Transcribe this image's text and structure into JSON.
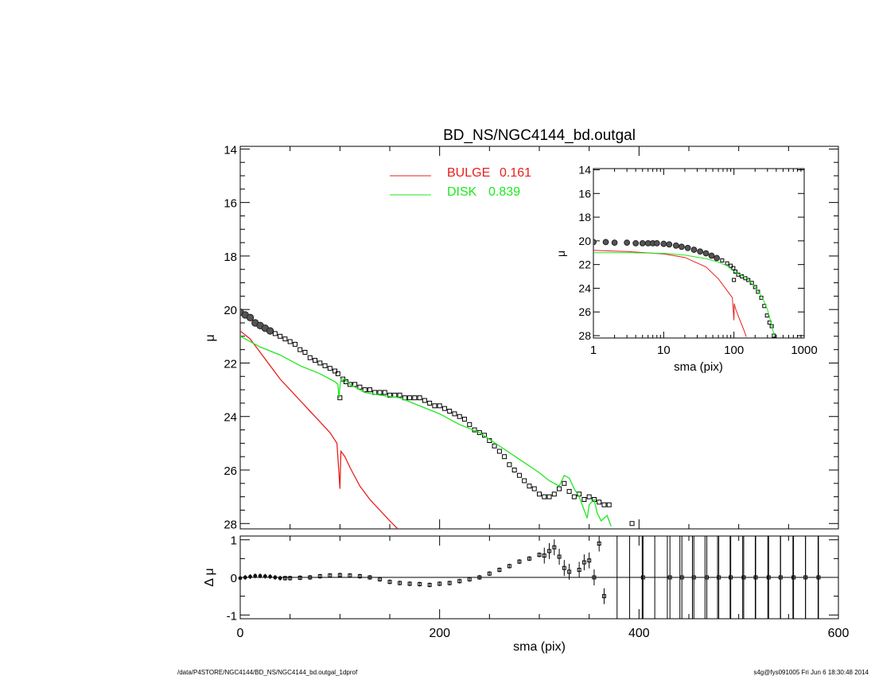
{
  "chart_data": [
    {
      "type": "scatter",
      "panel": "main profile",
      "title": "BD_NS/NGC4144_bd.outgal",
      "ylabel": "μ",
      "xlim": [
        0,
        600
      ],
      "ylim": [
        28.2,
        13.9
      ],
      "yticks": [
        "14",
        "16",
        "18",
        "20",
        "22",
        "24",
        "26",
        "28"
      ],
      "yticks_values": [
        14,
        16,
        18,
        20,
        22,
        24,
        26,
        28
      ],
      "x_minor_step": 50,
      "y_minor_step": 0.5,
      "legend": [
        {
          "label": "BULGE",
          "value": "0.161",
          "color": "#e8201c"
        },
        {
          "label": "DISK",
          "value": "0.839",
          "color": "#1ee81e"
        }
      ],
      "series": [
        {
          "name": "BULGE",
          "color": "#e8201c",
          "x": [
            0,
            10,
            20,
            30,
            40,
            50,
            60,
            70,
            80,
            90,
            97,
            99,
            100,
            101,
            105,
            110,
            120,
            130,
            140,
            150,
            158
          ],
          "y": [
            20.8,
            21.1,
            21.6,
            22.1,
            22.6,
            23.0,
            23.4,
            23.8,
            24.2,
            24.6,
            25.0,
            26.1,
            26.7,
            25.3,
            25.5,
            25.9,
            26.6,
            27.1,
            27.5,
            27.9,
            28.2
          ]
        },
        {
          "name": "DISK",
          "color": "#1ee81e",
          "x": [
            0,
            20,
            40,
            60,
            80,
            95,
            98,
            99,
            100,
            101,
            102,
            104,
            110,
            125,
            140,
            160,
            180,
            200,
            220,
            240,
            260,
            280,
            300,
            310,
            320,
            325,
            330,
            335,
            340,
            345,
            348,
            350,
            355,
            358,
            362,
            368,
            372
          ],
          "y": [
            21.0,
            21.4,
            21.7,
            22.1,
            22.4,
            22.7,
            22.8,
            23.3,
            22.9,
            22.6,
            22.6,
            22.6,
            22.8,
            23.1,
            23.2,
            23.3,
            23.6,
            23.9,
            24.3,
            24.6,
            25.1,
            25.6,
            26.1,
            26.4,
            26.6,
            26.2,
            26.3,
            26.7,
            27.0,
            27.5,
            27.8,
            27.3,
            27.1,
            27.6,
            27.9,
            27.7,
            28.1
          ]
        },
        {
          "name": "",
          "color": "#000000",
          "marker": "square",
          "x": [
            0,
            5,
            10,
            15,
            20,
            25,
            30,
            35,
            40,
            45,
            50,
            55,
            60,
            65,
            70,
            75,
            80,
            85,
            90,
            95,
            98,
            100,
            103,
            106,
            110,
            115,
            120,
            125,
            130,
            135,
            140,
            145,
            150,
            155,
            160,
            165,
            170,
            175,
            180,
            185,
            190,
            195,
            200,
            205,
            210,
            215,
            220,
            225,
            230,
            235,
            240,
            245,
            250,
            255,
            260,
            265,
            270,
            275,
            280,
            285,
            290,
            295,
            300,
            305,
            310,
            315,
            320,
            325,
            330,
            335,
            340,
            345,
            350,
            355,
            360,
            365,
            370,
            393
          ],
          "y": [
            20.1,
            20.2,
            20.3,
            20.5,
            20.6,
            20.7,
            20.8,
            20.9,
            21.0,
            21.1,
            21.2,
            21.3,
            21.5,
            21.6,
            21.8,
            21.9,
            22.0,
            22.1,
            22.2,
            22.3,
            22.4,
            23.3,
            22.6,
            22.7,
            22.8,
            22.8,
            22.9,
            23.0,
            23.0,
            23.1,
            23.1,
            23.1,
            23.2,
            23.2,
            23.2,
            23.3,
            23.3,
            23.3,
            23.3,
            23.4,
            23.5,
            23.6,
            23.6,
            23.7,
            23.8,
            23.9,
            24.0,
            24.1,
            24.3,
            24.5,
            24.6,
            24.7,
            24.9,
            25.1,
            25.3,
            25.5,
            25.8,
            26.0,
            26.2,
            26.4,
            26.6,
            26.7,
            26.9,
            27.0,
            27.0,
            26.9,
            26.7,
            26.5,
            26.8,
            27.0,
            26.9,
            27.1,
            27.0,
            27.1,
            27.2,
            27.3,
            27.3,
            28.0
          ]
        }
      ]
    },
    {
      "type": "scatter",
      "panel": "residual",
      "xlabel": "sma (pix)",
      "ylabel": "Δ μ",
      "xlim": [
        0,
        600
      ],
      "ylim": [
        -1.1,
        1.1
      ],
      "xticks": [
        "0",
        "200",
        "400",
        "600"
      ],
      "xticks_values": [
        0,
        200,
        400,
        600
      ],
      "yticks": [
        "1",
        "0",
        "-1"
      ],
      "yticks_values": [
        1,
        0,
        -1
      ],
      "x_minor_step": 50,
      "y_minor_step": 0.5,
      "zero_line": true,
      "points": {
        "x": [
          0,
          5,
          10,
          15,
          20,
          25,
          30,
          35,
          40,
          45,
          50,
          60,
          70,
          80,
          90,
          100,
          110,
          120,
          130,
          140,
          150,
          160,
          170,
          180,
          190,
          200,
          210,
          220,
          230,
          240,
          250,
          260,
          270,
          280,
          290,
          300,
          305,
          310,
          315,
          320,
          325,
          330,
          340,
          345,
          350,
          355,
          360,
          365
        ],
        "y": [
          -0.02,
          0.0,
          0.02,
          0.04,
          0.04,
          0.03,
          0.02,
          0.0,
          -0.02,
          -0.02,
          -0.02,
          -0.01,
          0.0,
          0.03,
          0.05,
          0.06,
          0.05,
          0.03,
          0.0,
          -0.05,
          -0.12,
          -0.15,
          -0.17,
          -0.18,
          -0.2,
          -0.17,
          -0.15,
          -0.1,
          -0.05,
          0.0,
          0.1,
          0.2,
          0.3,
          0.42,
          0.5,
          0.6,
          0.58,
          0.7,
          0.8,
          0.55,
          0.25,
          0.15,
          0.2,
          0.4,
          0.45,
          0.0,
          0.9,
          -0.5
        ]
      },
      "outlier_points": {
        "x": [
          404,
          431,
          443,
          455,
          468,
          480,
          492,
          505,
          517,
          530,
          542,
          555,
          567,
          580
        ],
        "y": [
          0,
          0,
          0,
          0,
          0,
          0,
          0,
          0,
          0,
          0,
          0,
          0,
          0,
          0
        ]
      }
    },
    {
      "type": "scatter",
      "panel": "inset (log x)",
      "xlabel": "sma (pix)",
      "ylabel": "μ",
      "x_scale": "log",
      "xlim": [
        1,
        1000
      ],
      "ylim": [
        28.2,
        13.9
      ],
      "xticks": [
        "1",
        "10",
        "100",
        "1000"
      ],
      "xticks_values": [
        1,
        10,
        100,
        1000
      ],
      "yticks": [
        "14",
        "16",
        "18",
        "20",
        "22",
        "24",
        "26",
        "28"
      ],
      "yticks_values": [
        14,
        16,
        18,
        20,
        22,
        24,
        26,
        28
      ],
      "series": [
        {
          "name": "BULGE",
          "color": "#e8201c",
          "x": [
            1,
            3,
            10,
            20,
            40,
            60,
            80,
            95,
            100,
            101,
            105,
            120,
            140,
            150
          ],
          "y": [
            20.8,
            20.9,
            21.1,
            21.4,
            22.2,
            23.2,
            24.2,
            24.8,
            26.7,
            25.3,
            25.7,
            26.6,
            27.6,
            28.1
          ]
        },
        {
          "name": "DISK",
          "color": "#1ee81e",
          "x": [
            1,
            3,
            10,
            20,
            40,
            60,
            80,
            100,
            150,
            200,
            250,
            300,
            340,
            360,
            380
          ],
          "y": [
            21.0,
            21.0,
            21.05,
            21.2,
            21.5,
            21.8,
            22.1,
            22.6,
            23.1,
            23.9,
            24.7,
            25.8,
            27.0,
            27.6,
            28.1
          ]
        },
        {
          "name": "",
          "color": "#000000",
          "marker": "square",
          "x": [
            1,
            1.5,
            2,
            3,
            4,
            5,
            6,
            7,
            8,
            10,
            12,
            15,
            18,
            22,
            27,
            33,
            40,
            48,
            57,
            68,
            80,
            90,
            98,
            100,
            105,
            115,
            130,
            145,
            160,
            180,
            200,
            220,
            245,
            270,
            295,
            320,
            345,
            370
          ],
          "y": [
            20.1,
            20.1,
            20.15,
            20.15,
            20.2,
            20.2,
            20.2,
            20.2,
            20.2,
            20.25,
            20.3,
            20.4,
            20.5,
            20.6,
            20.75,
            20.9,
            21.05,
            21.25,
            21.45,
            21.65,
            21.9,
            22.1,
            22.3,
            23.3,
            22.6,
            22.85,
            23.0,
            23.15,
            23.3,
            23.55,
            23.9,
            24.3,
            24.8,
            25.5,
            26.3,
            26.9,
            27.2,
            28.0
          ]
        }
      ]
    }
  ],
  "footer": {
    "path": "/data/P4STORE/NGC4144/BD_NS/NGC4144_bd.outgal_1dprof",
    "stamp": "s4g@fys091005  Fri Jun  6 18:30:48 2014"
  }
}
